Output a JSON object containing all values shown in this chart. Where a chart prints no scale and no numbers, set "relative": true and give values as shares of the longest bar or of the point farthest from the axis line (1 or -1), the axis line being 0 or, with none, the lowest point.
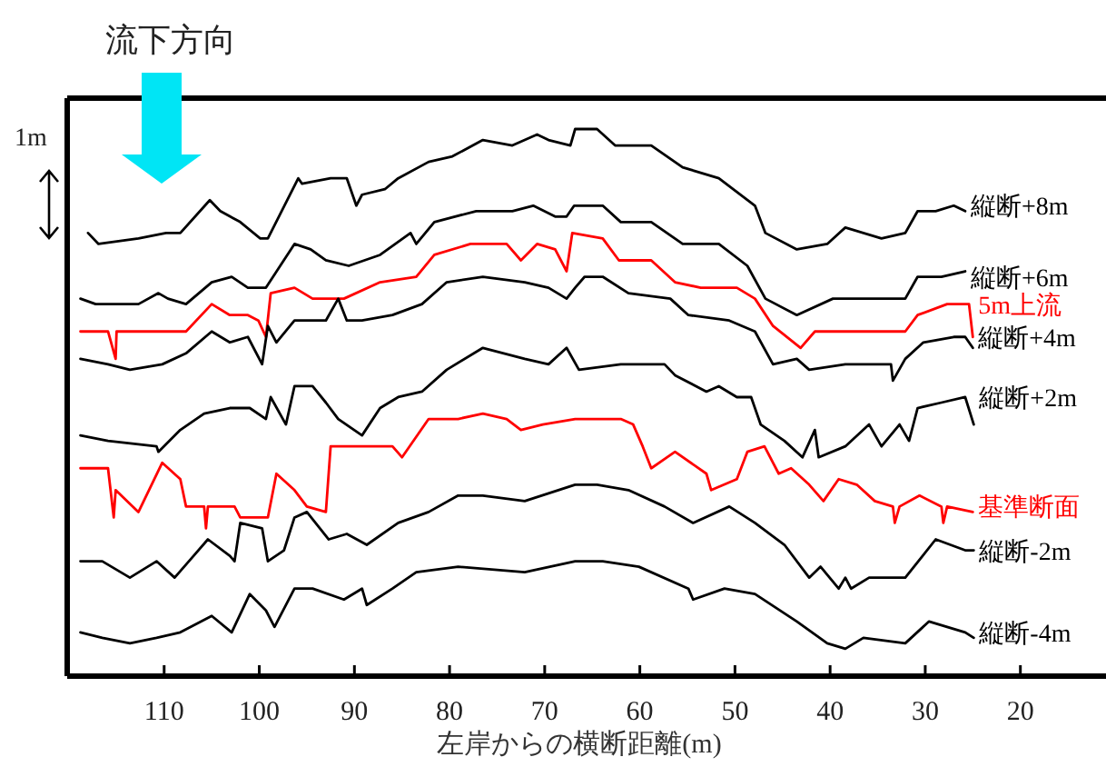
{
  "chart_data": {
    "type": "line",
    "relative": true,
    "xlabel": "左岸からの横断距離(m)",
    "xlim": [
      120,
      11
    ],
    "xticks": [
      110,
      100,
      90,
      80,
      70,
      60,
      50,
      40,
      30,
      20
    ],
    "annotations": [
      "流下方向",
      "1m"
    ],
    "series": [
      {
        "name": "縦断+8m",
        "color": "#000000",
        "x": [
          118.0,
          116.9,
          112.7,
          109.8,
          108.3,
          105.2,
          104.1,
          102.0,
          99.9,
          99.1,
          95.9,
          95.5,
          92.5,
          90.8,
          89.8,
          89.2,
          86.8,
          85.4,
          82.2,
          79.7,
          76.5,
          73.4,
          70.8,
          69.6,
          67.3,
          66.8,
          64.5,
          62.6,
          58.8,
          55.5,
          51.7,
          47.9,
          46.8,
          43.5,
          40.3,
          38.4,
          34.6,
          32.1,
          30.8,
          28.9,
          27.0,
          25.8
        ],
        "values": [
          0.81,
          0.79,
          0.8,
          0.81,
          0.81,
          0.87,
          0.85,
          0.83,
          0.8,
          0.8,
          0.91,
          0.9,
          0.91,
          0.91,
          0.86,
          0.88,
          0.89,
          0.91,
          0.94,
          0.95,
          0.98,
          0.97,
          0.99,
          0.98,
          0.97,
          1.0,
          1.0,
          0.97,
          0.97,
          0.93,
          0.91,
          0.86,
          0.81,
          0.78,
          0.79,
          0.82,
          0.8,
          0.81,
          0.85,
          0.85,
          0.86,
          0.85
        ]
      },
      {
        "name": "縦断+6m",
        "color": "#000000",
        "x": [
          118.8,
          117.2,
          112.7,
          110.6,
          109.6,
          107.7,
          105.0,
          102.9,
          101.2,
          99.3,
          96.3,
          94.6,
          93.0,
          90.6,
          87.3,
          84.1,
          83.5,
          81.6,
          77.2,
          73.4,
          71.2,
          68.9,
          67.7,
          66.9,
          65.8,
          63.9,
          62.0,
          58.8,
          55.5,
          51.7,
          48.7,
          46.8,
          43.5,
          39.7,
          37.2,
          32.1,
          30.8,
          28.3,
          25.8
        ],
        "values": [
          0.69,
          0.68,
          0.68,
          0.7,
          0.69,
          0.68,
          0.72,
          0.73,
          0.71,
          0.71,
          0.79,
          0.78,
          0.76,
          0.75,
          0.77,
          0.81,
          0.79,
          0.83,
          0.85,
          0.85,
          0.86,
          0.84,
          0.84,
          0.86,
          0.86,
          0.86,
          0.83,
          0.83,
          0.79,
          0.79,
          0.75,
          0.69,
          0.66,
          0.69,
          0.69,
          0.69,
          0.73,
          0.73,
          0.74
        ]
      },
      {
        "name": "5m上流",
        "color": "#ff0000",
        "x": [
          118.8,
          115.9,
          115.1,
          115.0,
          110.8,
          107.7,
          105.0,
          103.1,
          101.2,
          100.1,
          99.3,
          98.8,
          96.3,
          94.4,
          91.1,
          87.3,
          83.5,
          81.6,
          77.8,
          74.0,
          72.5,
          70.8,
          68.9,
          67.7,
          67.1,
          63.9,
          62.2,
          58.8,
          56.3,
          53.6,
          49.8,
          47.9,
          46.0,
          43.1,
          41.6,
          38.4,
          32.1,
          30.8,
          27.7,
          25.4,
          25.0
        ],
        "values": [
          0.63,
          0.63,
          0.58,
          0.63,
          0.63,
          0.63,
          0.68,
          0.66,
          0.66,
          0.65,
          0.62,
          0.7,
          0.71,
          0.69,
          0.69,
          0.72,
          0.73,
          0.77,
          0.79,
          0.79,
          0.76,
          0.79,
          0.78,
          0.74,
          0.81,
          0.8,
          0.76,
          0.76,
          0.72,
          0.71,
          0.71,
          0.69,
          0.64,
          0.6,
          0.63,
          0.63,
          0.63,
          0.66,
          0.68,
          0.68,
          0.62
        ]
      },
      {
        "name": "縦断+4m",
        "color": "#000000",
        "x": [
          118.8,
          115.9,
          113.6,
          110.2,
          107.7,
          105.0,
          103.1,
          101.2,
          99.7,
          99.1,
          98.2,
          96.3,
          93.0,
          91.7,
          90.8,
          89.2,
          86.0,
          82.9,
          80.3,
          76.5,
          72.1,
          69.6,
          67.7,
          66.8,
          65.8,
          63.9,
          61.2,
          56.8,
          54.9,
          50.6,
          47.9,
          46.0,
          43.5,
          42.2,
          38.4,
          33.6,
          33.4,
          32.1,
          30.2,
          27.0,
          25.8,
          25.0
        ],
        "values": [
          0.58,
          0.57,
          0.56,
          0.57,
          0.59,
          0.63,
          0.61,
          0.62,
          0.57,
          0.64,
          0.61,
          0.65,
          0.65,
          0.69,
          0.65,
          0.65,
          0.66,
          0.68,
          0.72,
          0.73,
          0.72,
          0.71,
          0.69,
          0.71,
          0.73,
          0.73,
          0.7,
          0.69,
          0.66,
          0.65,
          0.63,
          0.57,
          0.58,
          0.56,
          0.57,
          0.57,
          0.54,
          0.58,
          0.61,
          0.62,
          0.62,
          0.6
        ]
      },
      {
        "name": "縦断+2m",
        "color": "#000000",
        "x": [
          118.8,
          115.9,
          110.8,
          110.6,
          108.3,
          105.8,
          103.1,
          101.0,
          99.3,
          98.8,
          97.2,
          96.3,
          94.4,
          93.0,
          91.7,
          89.2,
          87.3,
          85.4,
          82.9,
          80.3,
          76.5,
          72.1,
          69.6,
          67.7,
          66.4,
          62.0,
          57.4,
          56.3,
          53.0,
          51.7,
          49.8,
          48.3,
          47.3,
          44.8,
          42.9,
          41.6,
          41.2,
          38.4,
          35.9,
          34.6,
          32.7,
          31.7,
          30.8,
          28.3,
          25.8,
          24.9
        ],
        "values": [
          0.44,
          0.43,
          0.42,
          0.41,
          0.45,
          0.48,
          0.49,
          0.49,
          0.47,
          0.51,
          0.46,
          0.53,
          0.53,
          0.5,
          0.47,
          0.44,
          0.49,
          0.51,
          0.52,
          0.56,
          0.6,
          0.58,
          0.57,
          0.6,
          0.56,
          0.57,
          0.57,
          0.55,
          0.52,
          0.53,
          0.51,
          0.51,
          0.46,
          0.43,
          0.4,
          0.45,
          0.4,
          0.42,
          0.46,
          0.42,
          0.46,
          0.43,
          0.49,
          0.5,
          0.51,
          0.46
        ]
      },
      {
        "name": "基準断面",
        "color": "#ff0000",
        "x": [
          118.8,
          115.9,
          115.3,
          115.1,
          112.7,
          110.2,
          108.3,
          107.7,
          105.8,
          105.6,
          105.4,
          102.6,
          102.0,
          99.1,
          98.2,
          96.3,
          95.0,
          93.0,
          92.5,
          89.2,
          86.0,
          85.0,
          82.2,
          79.1,
          76.5,
          74.0,
          72.5,
          70.2,
          66.8,
          62.0,
          60.7,
          59.7,
          58.8,
          56.3,
          53.0,
          52.5,
          49.8,
          48.7,
          46.9,
          45.4,
          44.1,
          42.2,
          40.7,
          39.1,
          37.2,
          35.3,
          33.4,
          33.2,
          32.7,
          30.6,
          28.3,
          28.1,
          27.7,
          25.0
        ],
        "values": [
          0.38,
          0.38,
          0.29,
          0.34,
          0.3,
          0.39,
          0.36,
          0.31,
          0.31,
          0.27,
          0.31,
          0.31,
          0.29,
          0.29,
          0.37,
          0.34,
          0.31,
          0.3,
          0.42,
          0.42,
          0.42,
          0.4,
          0.47,
          0.47,
          0.48,
          0.47,
          0.45,
          0.46,
          0.47,
          0.47,
          0.46,
          0.42,
          0.38,
          0.41,
          0.37,
          0.34,
          0.36,
          0.41,
          0.42,
          0.37,
          0.38,
          0.35,
          0.32,
          0.36,
          0.35,
          0.32,
          0.31,
          0.28,
          0.31,
          0.33,
          0.31,
          0.28,
          0.31,
          0.3
        ]
      },
      {
        "name": "縦断-2m",
        "color": "#000000",
        "x": [
          118.8,
          116.5,
          113.6,
          110.8,
          108.9,
          106.9,
          105.4,
          103.1,
          102.6,
          102.0,
          99.7,
          99.1,
          97.4,
          96.3,
          95.0,
          92.7,
          90.8,
          88.7,
          85.4,
          82.2,
          79.1,
          76.5,
          72.1,
          66.8,
          64.5,
          61.2,
          57.4,
          54.4,
          50.6,
          47.9,
          44.8,
          42.2,
          41.0,
          39.1,
          38.4,
          37.8,
          35.9,
          32.1,
          28.9,
          25.8,
          24.9
        ],
        "values": [
          0.21,
          0.21,
          0.18,
          0.21,
          0.18,
          0.22,
          0.25,
          0.22,
          0.21,
          0.28,
          0.27,
          0.21,
          0.23,
          0.29,
          0.3,
          0.25,
          0.26,
          0.24,
          0.28,
          0.3,
          0.33,
          0.33,
          0.32,
          0.35,
          0.35,
          0.34,
          0.31,
          0.28,
          0.31,
          0.28,
          0.24,
          0.18,
          0.2,
          0.16,
          0.18,
          0.16,
          0.18,
          0.18,
          0.25,
          0.23,
          0.23
        ]
      },
      {
        "name": "縦断-4m",
        "color": "#000000",
        "x": [
          118.8,
          116.5,
          113.6,
          110.8,
          108.3,
          105.0,
          102.9,
          101.0,
          99.3,
          98.4,
          96.3,
          94.4,
          91.1,
          89.2,
          88.7,
          86.0,
          83.5,
          79.1,
          72.1,
          66.8,
          63.9,
          60.1,
          54.9,
          54.4,
          51.1,
          47.9,
          43.5,
          40.3,
          38.4,
          36.5,
          32.1,
          29.6,
          25.8,
          24.9
        ],
        "values": [
          0.08,
          0.07,
          0.06,
          0.07,
          0.08,
          0.11,
          0.08,
          0.15,
          0.12,
          0.09,
          0.16,
          0.16,
          0.14,
          0.16,
          0.13,
          0.16,
          0.19,
          0.2,
          0.19,
          0.21,
          0.21,
          0.2,
          0.16,
          0.14,
          0.16,
          0.15,
          0.1,
          0.06,
          0.05,
          0.07,
          0.06,
          0.1,
          0.08,
          0.07
        ]
      }
    ]
  }
}
